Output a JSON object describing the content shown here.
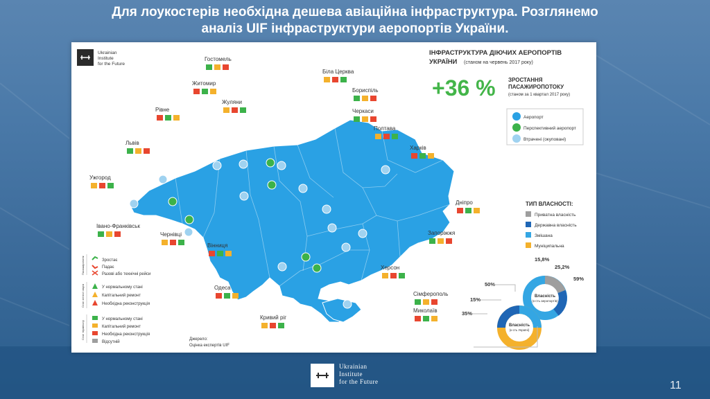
{
  "slide": {
    "title_line1": "Для лоукостерів необхідна дешева авіаційна інфраструктура. Розглянемо",
    "title_line2": "аналіз UIF інфраструктури аеропортів України.",
    "page_number": "11",
    "footer_logo": [
      "Ukrainian",
      "Institute",
      "for the Future"
    ]
  },
  "infographic": {
    "brand": [
      "Ukrainian",
      "Institute",
      "for the Future"
    ],
    "heading1": "ІНФРАСТРУКТУРА ДІЮЧИХ АЕРОПОРТІВ",
    "heading2": "УКРАЇНИ",
    "heading2_note": "(станом на червень 2017 року)",
    "growth_value": "+36 %",
    "growth_label1": "ЗРОСТАННЯ",
    "growth_label2": "ПАСАЖИРОПОТОКУ",
    "growth_note": "(станом за 1 квартал 2017 року)",
    "legend_types": [
      "Аеропорт",
      "Перспективний аеропорт",
      "Втрачені (окуповані)"
    ],
    "ownership_title": "ТИП ВЛАСНОСТІ:",
    "ownership_types": [
      {
        "label": "Приватна власність",
        "color": "#9e9e9e"
      },
      {
        "label": "Державна власність",
        "color": "#1f66b5"
      },
      {
        "label": "Змішана",
        "color": "#34a6e3"
      },
      {
        "label": "Муніципальна",
        "color": "#f4b12c"
      }
    ],
    "ownership_donut1": {
      "label1": "Власність",
      "label2": "(к-сть аеропортів)",
      "values": [
        "15,8%",
        "25,2%",
        "59%"
      ]
    },
    "ownership_donut2": {
      "label1": "Власність",
      "label2": "(к-сть Україні)",
      "values": [
        "50%",
        "15%",
        "35%"
      ]
    },
    "bottom_legend": {
      "group1_title": "Пасажиропотік",
      "group1": [
        "Зростає",
        "Падає",
        "Разові або технічні рейси"
      ],
      "group2_title": "Стан злітної смуги",
      "group2": [
        "У нормальному стані",
        "Капітальний ремонт",
        "Необхідна реконструкція"
      ],
      "group3_title": "Стан терміналу",
      "group3": [
        "У нормальному стані",
        "Капітальний ремонт",
        "Необхідна реконструкція",
        "Відсутній"
      ]
    },
    "source_label": "Джерело:",
    "source_value": "Оцінка експертів UIF",
    "cities": [
      "Гостомель",
      "Біла Церква",
      "Житомир",
      "Бориспіль",
      "Жуляни",
      "Рівне",
      "Черкаси",
      "Полтава",
      "Харків",
      "Львів",
      "Ужгород",
      "Дніпро",
      "Івано-Франківськ",
      "Чернівці",
      "Вінниця",
      "Запоріжжя",
      "Херсон",
      "Одеса",
      "Сімферополь",
      "Кривий ріг",
      "Миколаїв"
    ]
  },
  "colors": {
    "map": "#2aa1e4",
    "accent_green": "#3cb24a",
    "growth_green": "#43b549",
    "orange": "#f4b12c",
    "red": "#e8462f"
  }
}
